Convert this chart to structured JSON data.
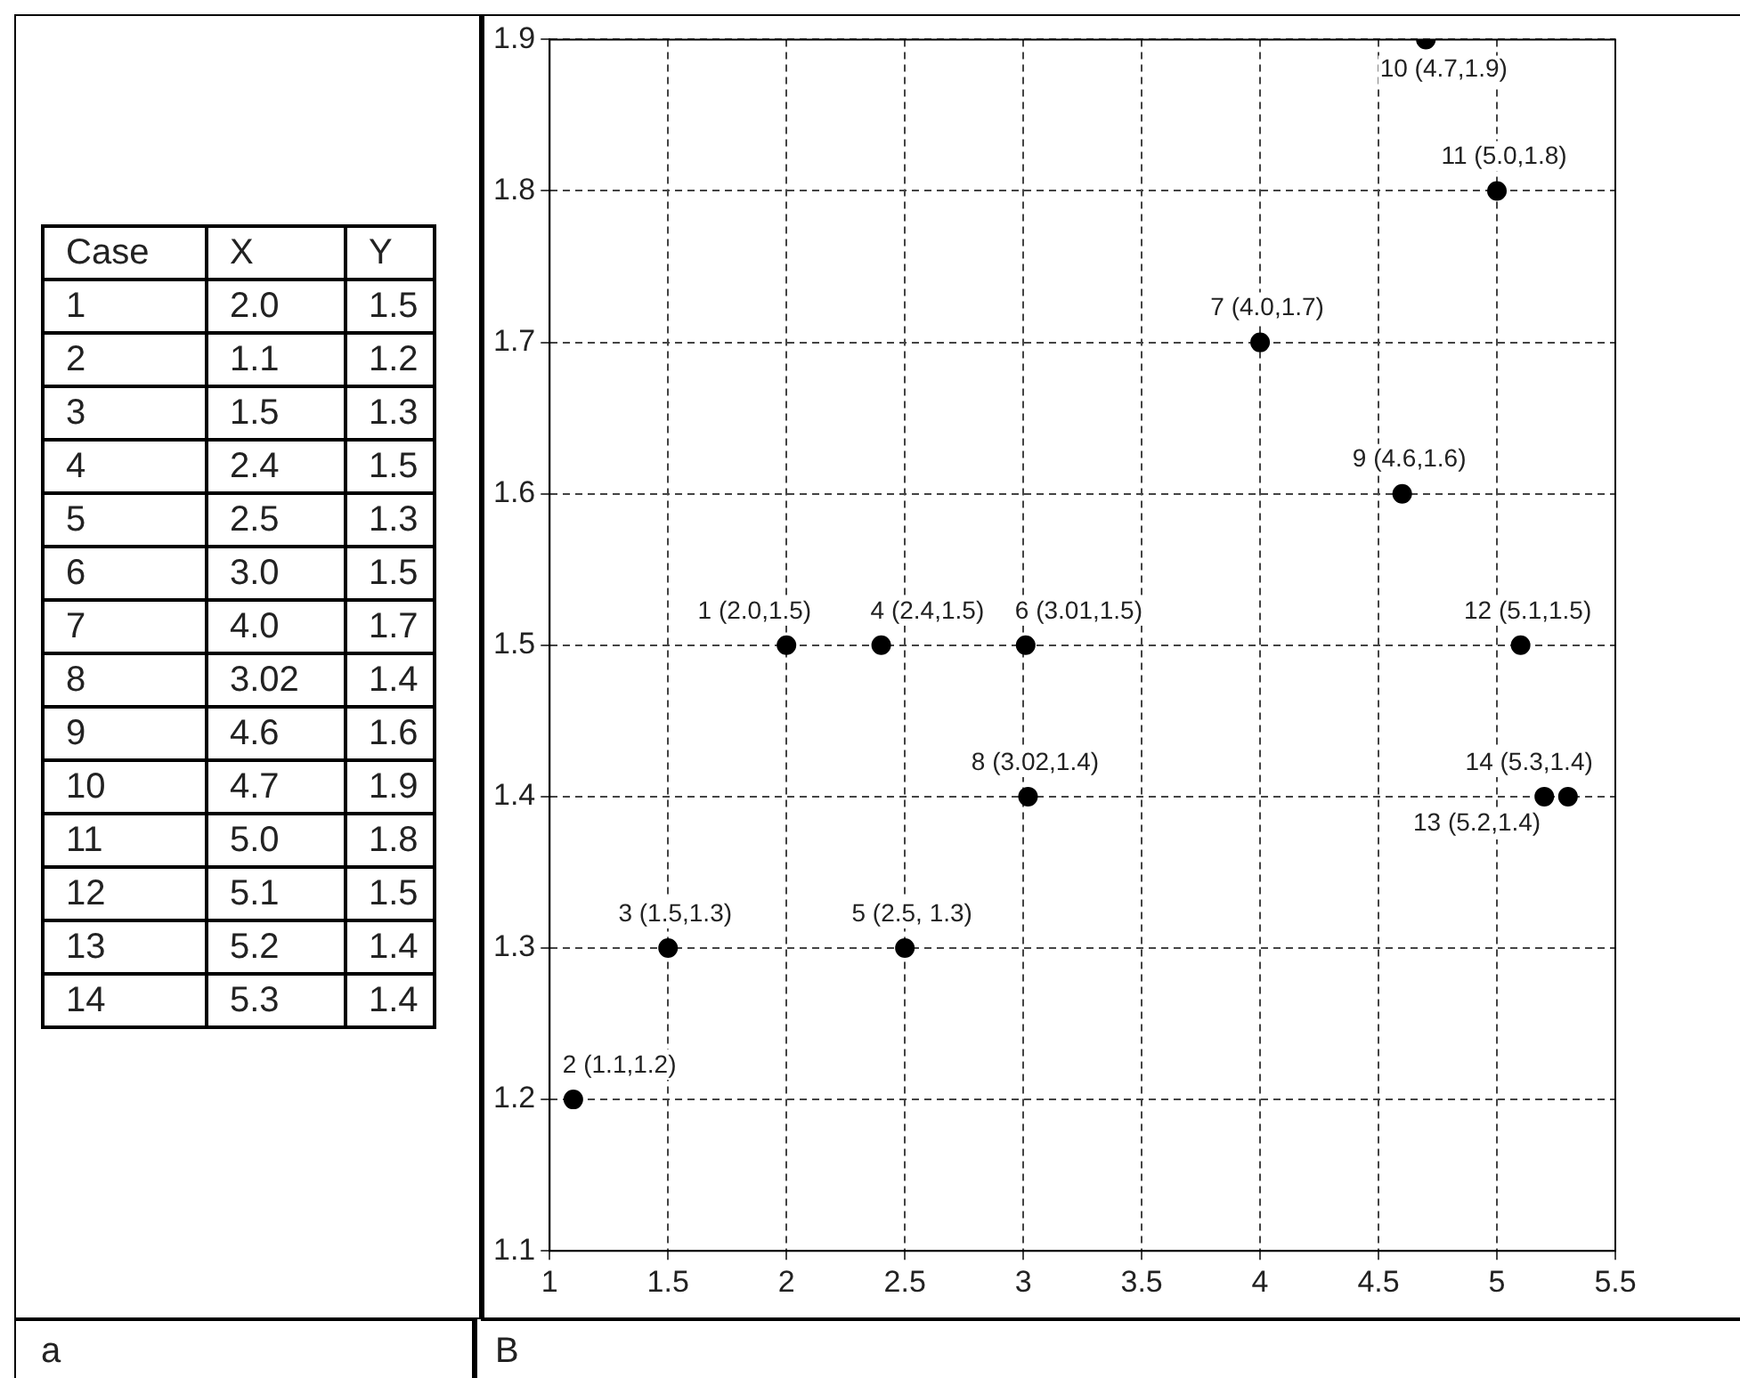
{
  "chart_data": {
    "type": "scatter",
    "x": [
      2.0,
      1.1,
      1.5,
      2.4,
      2.5,
      3.01,
      4.0,
      3.02,
      4.6,
      4.7,
      5.0,
      5.1,
      5.2,
      5.3
    ],
    "series": [
      {
        "color": "#000000",
        "values": [
          1.5,
          1.2,
          1.3,
          1.5,
          1.3,
          1.5,
          1.7,
          1.4,
          1.6,
          1.9,
          1.8,
          1.5,
          1.4,
          1.4
        ],
        "value_labels": [
          "1 (2.0,1.5)",
          "2 (1.1,1.2)",
          "3 (1.5,1.3)",
          "4 (2.4,1.5)",
          "5 (2.5, 1.3)",
          "6 (3.01,1.5)",
          "7 (4.0,1.7)",
          "8 (3.02,1.4)",
          "9 (4.6,1.6)",
          "10 (4.7,1.9)",
          "11 (5.0,1.8)",
          "12 (5.1,1.5)",
          "13 (5.2,1.4)",
          "14 (5.3,1.4)"
        ]
      }
    ],
    "xlim": [
      1,
      5.5
    ],
    "xticks": [
      1,
      1.5,
      2,
      2.5,
      3,
      3.5,
      4,
      4.5,
      5,
      5.5
    ],
    "ylim": [
      1.1,
      1.9
    ],
    "yticks": [
      1.1,
      1.2,
      1.3,
      1.4,
      1.5,
      1.6,
      1.7,
      1.8,
      1.9
    ],
    "grid": true,
    "marker": "circle",
    "legend": false,
    "annotations": [
      "Case",
      "X",
      "Y",
      "1",
      "2.0",
      "1.5",
      "2",
      "1.1",
      "1.2",
      "3",
      "1.5",
      "1.3",
      "4",
      "2.4",
      "1.5",
      "5",
      "2.5",
      "1.3",
      "6",
      "3.0",
      "1.5",
      "7",
      "4.0",
      "1.7",
      "8",
      "3.02",
      "1.4",
      "9",
      "4.6",
      "1.6",
      "10",
      "4.7",
      "1.9",
      "11",
      "5.0",
      "1.8",
      "12",
      "5.1",
      "1.5",
      "13",
      "5.2",
      "1.4",
      "14",
      "5.3",
      "1.4",
      "a",
      "B"
    ]
  }
}
